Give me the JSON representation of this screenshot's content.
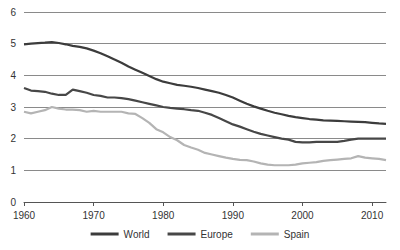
{
  "chart_data": {
    "type": "line",
    "x": [
      1960,
      1961,
      1962,
      1963,
      1964,
      1965,
      1966,
      1967,
      1968,
      1969,
      1970,
      1971,
      1972,
      1973,
      1974,
      1975,
      1976,
      1977,
      1978,
      1979,
      1980,
      1981,
      1982,
      1983,
      1984,
      1985,
      1986,
      1987,
      1988,
      1989,
      1990,
      1991,
      1992,
      1993,
      1994,
      1995,
      1996,
      1997,
      1998,
      1999,
      2000,
      2001,
      2002,
      2003,
      2004,
      2005,
      2006,
      2007,
      2008,
      2009,
      2010,
      2011,
      2012
    ],
    "series": [
      {
        "name": "World",
        "color": "#3c3c3c",
        "values": [
          4.98,
          5.0,
          5.02,
          5.03,
          5.05,
          5.02,
          4.98,
          4.93,
          4.9,
          4.85,
          4.78,
          4.7,
          4.6,
          4.5,
          4.4,
          4.28,
          4.18,
          4.08,
          3.98,
          3.88,
          3.8,
          3.75,
          3.7,
          3.67,
          3.64,
          3.6,
          3.55,
          3.5,
          3.45,
          3.38,
          3.3,
          3.2,
          3.1,
          3.02,
          2.95,
          2.88,
          2.82,
          2.77,
          2.72,
          2.68,
          2.65,
          2.62,
          2.6,
          2.58,
          2.57,
          2.56,
          2.55,
          2.54,
          2.53,
          2.52,
          2.5,
          2.48,
          2.47
        ]
      },
      {
        "name": "Europe",
        "color": "#474747",
        "values": [
          3.6,
          3.52,
          3.5,
          3.48,
          3.42,
          3.38,
          3.38,
          3.55,
          3.5,
          3.45,
          3.38,
          3.35,
          3.3,
          3.3,
          3.28,
          3.25,
          3.2,
          3.15,
          3.1,
          3.05,
          3.0,
          2.97,
          2.95,
          2.93,
          2.9,
          2.88,
          2.82,
          2.75,
          2.65,
          2.55,
          2.45,
          2.38,
          2.3,
          2.22,
          2.15,
          2.1,
          2.05,
          2.0,
          1.97,
          1.9,
          1.88,
          1.88,
          1.9,
          1.9,
          1.9,
          1.9,
          1.93,
          1.97,
          2.0,
          2.0,
          2.0,
          2.0,
          2.0
        ]
      },
      {
        "name": "Spain",
        "color": "#b4b4b4",
        "values": [
          2.85,
          2.8,
          2.85,
          2.9,
          3.0,
          2.95,
          2.92,
          2.92,
          2.9,
          2.85,
          2.88,
          2.85,
          2.85,
          2.85,
          2.85,
          2.8,
          2.78,
          2.65,
          2.5,
          2.3,
          2.2,
          2.05,
          1.95,
          1.8,
          1.72,
          1.65,
          1.55,
          1.5,
          1.45,
          1.4,
          1.36,
          1.33,
          1.32,
          1.28,
          1.22,
          1.18,
          1.16,
          1.16,
          1.16,
          1.18,
          1.22,
          1.24,
          1.26,
          1.3,
          1.32,
          1.34,
          1.36,
          1.38,
          1.45,
          1.4,
          1.38,
          1.36,
          1.32
        ]
      }
    ],
    "xlim": [
      1960,
      2012
    ],
    "xticks": [
      1960,
      1970,
      1980,
      1990,
      2000,
      2010
    ],
    "ylim": [
      0,
      6
    ],
    "yticks": [
      0,
      1,
      2,
      3,
      4,
      5,
      6
    ],
    "grid": true,
    "legend": "bottom"
  }
}
